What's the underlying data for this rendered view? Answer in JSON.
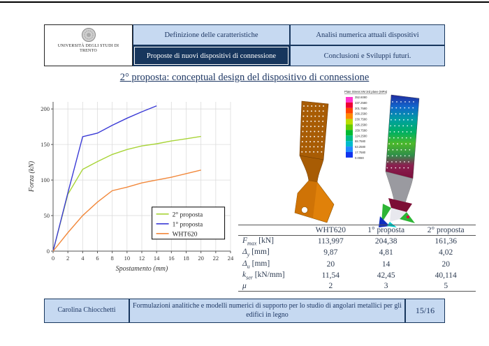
{
  "header": {
    "logo": {
      "line1": "UNIVERSITÀ DEGLI STUDI DI",
      "line2": "TRENTO"
    },
    "nav": [
      {
        "label": "Definizione delle caratteristiche"
      },
      {
        "label": "Analisi numerica attuali dispositivi"
      },
      {
        "label": "Proposte di nuovi dispositivi di connessione"
      },
      {
        "label": "Conclusioni e Sviluppi futuri."
      }
    ]
  },
  "title": "2° proposta: conceptual design del dispositivo di connessione",
  "chart_data": {
    "type": "line",
    "xlabel": "Spostamento (mm)",
    "ylabel": "Forza (kN)",
    "xlim": [
      0,
      24
    ],
    "ylim": [
      0,
      210
    ],
    "xticks": [
      0,
      2,
      4,
      6,
      8,
      10,
      12,
      14,
      16,
      18,
      20,
      22,
      24
    ],
    "yticks": [
      0,
      50,
      100,
      150,
      200
    ],
    "grid": true,
    "legend_position": "lower right",
    "series": [
      {
        "name": "2° proposta",
        "color": "#a8d437",
        "x": [
          0,
          2,
          4,
          6,
          8,
          10,
          12,
          14,
          16,
          18,
          20
        ],
        "y": [
          0,
          80,
          115,
          126,
          136,
          143,
          148,
          151,
          155,
          158,
          161.36
        ]
      },
      {
        "name": "1° proposta",
        "color": "#3b3bd6",
        "x": [
          0,
          2,
          4,
          6,
          8,
          10,
          12,
          14
        ],
        "y": [
          0,
          82,
          161,
          166,
          177,
          187,
          196,
          204.38
        ]
      },
      {
        "name": "WHT620",
        "color": "#f2883b",
        "x": [
          0,
          2,
          4,
          6,
          8,
          10,
          12,
          14,
          16,
          18,
          20
        ],
        "y": [
          0,
          26,
          50,
          69,
          85,
          90,
          96,
          100,
          104,
          109,
          113.997
        ]
      }
    ]
  },
  "stress_legend": {
    "title": "Plate Stress:VM 3rd plane (MPa)",
    "values": [
      "352.6080",
      "337.2580",
      "301.7580",
      "266.2580",
      "230.7580",
      "195.2580",
      "159.7580",
      "124.2580",
      "88.7580",
      "53.2580",
      "17.7580",
      "0.0080"
    ],
    "colors": [
      "#ff33cc",
      "#ee0033",
      "#ff4400",
      "#ff8800",
      "#bbdd00",
      "#66cc00",
      "#00bb33",
      "#00bb88",
      "#00bbcc",
      "#2288ff",
      "#1133ee"
    ]
  },
  "results_table": {
    "columns": [
      "",
      "WHT620",
      "1° proposta",
      "2° proposta"
    ],
    "rows": [
      {
        "base": "F",
        "sub": "max",
        "unit": "[kN]",
        "values": [
          "113,997",
          "204,38",
          "161,36"
        ]
      },
      {
        "base": "Δ",
        "sub": "y",
        "unit": "[mm]",
        "values": [
          "9,87",
          "4,81",
          "4,02"
        ]
      },
      {
        "base": "Δ",
        "sub": "u",
        "unit": "[mm]",
        "values": [
          "20",
          "14",
          "20"
        ]
      },
      {
        "base": "k",
        "sub": "ser",
        "unit": "[kN/mm]",
        "values": [
          "11,54",
          "42,45",
          "40,114"
        ]
      },
      {
        "base": "μ",
        "sub": "",
        "unit": "",
        "values": [
          "2",
          "3",
          "5"
        ]
      }
    ]
  },
  "footer": {
    "author": "Carolina Chiocchetti",
    "thesis_title": "Formulazioni analitiche e modelli numerici di supporto per lo studio di angolari metallici per gli edifici in legno",
    "page": "15/16"
  }
}
